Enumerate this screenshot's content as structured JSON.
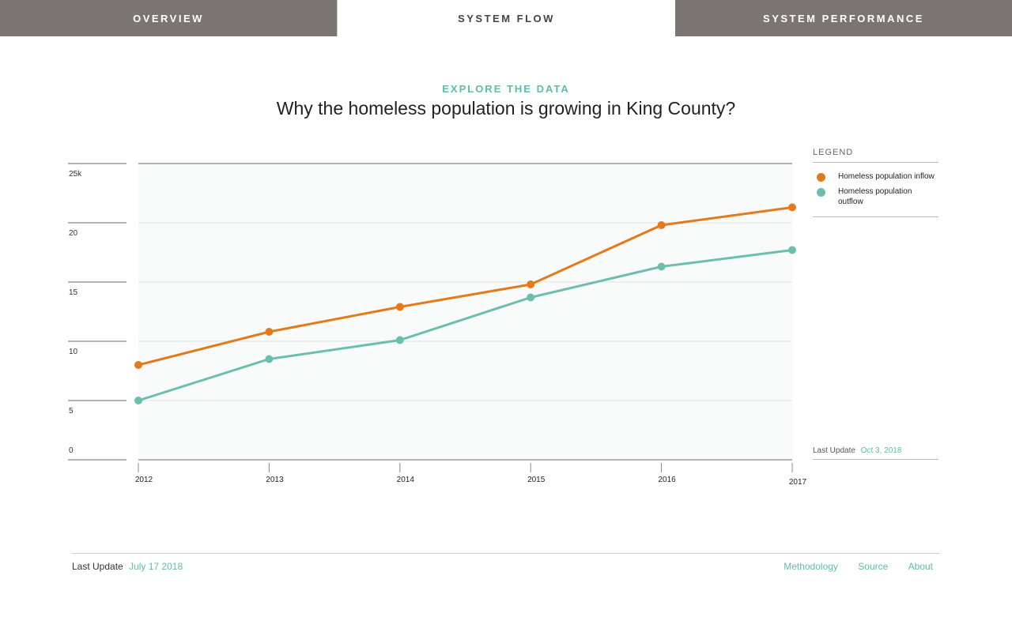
{
  "tabs": [
    {
      "label": "OVERVIEW",
      "active": false
    },
    {
      "label": "SYSTEM FLOW",
      "active": true
    },
    {
      "label": "SYSTEM PERFORMANCE",
      "active": false
    }
  ],
  "header": {
    "kicker": "EXPLORE THE DATA",
    "title": "Why the homeless population is growing in King County?"
  },
  "legend": {
    "title": "LEGEND",
    "items": [
      {
        "label": "Homeless population inflow",
        "color": "#e37b1c"
      },
      {
        "label": "Homeless population outflow",
        "color": "#6cbfaf"
      }
    ]
  },
  "chart_update": {
    "label": "Last Update",
    "value": "Oct 3, 2018"
  },
  "footer": {
    "update_label": "Last Update",
    "update_value": "July 17 2018",
    "links": [
      "Methodology",
      "Source",
      "About"
    ]
  },
  "chart_data": {
    "type": "line",
    "title": "",
    "xlabel": "",
    "ylabel": "",
    "x": [
      "2012",
      "2013",
      "2014",
      "2015",
      "2016",
      "2017"
    ],
    "ylim": [
      0,
      25
    ],
    "yticks": [
      0,
      5,
      10,
      15,
      20,
      25
    ],
    "ytick_labels": [
      "0",
      "5",
      "10",
      "15",
      "20",
      "25k"
    ],
    "grid": true,
    "legend_position": "right",
    "series": [
      {
        "name": "Homeless population inflow",
        "color": "#e37b1c",
        "values": [
          8.0,
          10.8,
          12.9,
          14.8,
          19.8,
          21.3
        ]
      },
      {
        "name": "Homeless population outflow",
        "color": "#6cbfaf",
        "values": [
          5.0,
          8.5,
          10.1,
          13.7,
          16.3,
          17.7
        ]
      }
    ]
  }
}
